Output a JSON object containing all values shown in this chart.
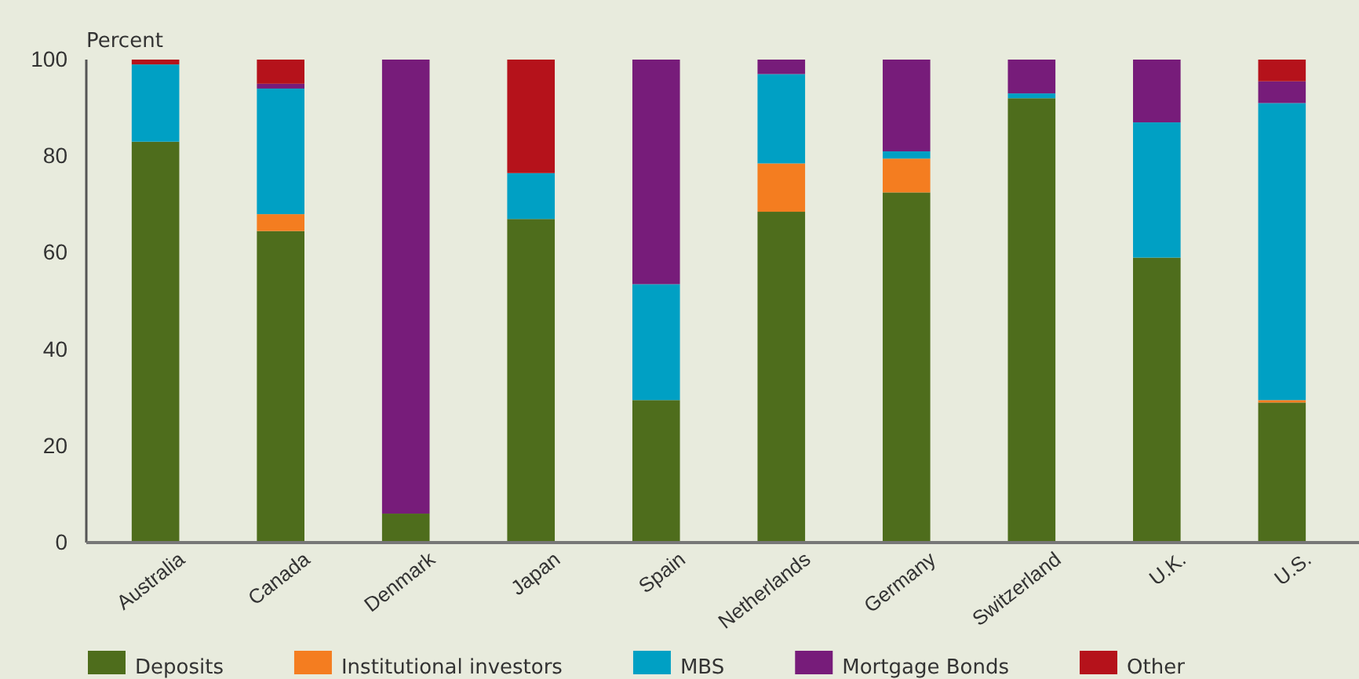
{
  "chart_data": {
    "type": "bar",
    "stacked": true,
    "ylabel": "Percent",
    "categories": [
      "Australia",
      "Canada",
      "Denmark",
      "Japan",
      "Spain",
      "Netherlands",
      "Germany",
      "Switzerland",
      "U.K.",
      "U.S."
    ],
    "series": [
      {
        "name": "Deposits",
        "color": "#4e6d1c",
        "values": [
          83,
          64.5,
          6,
          67,
          29.5,
          68.5,
          72.5,
          92,
          59,
          29
        ]
      },
      {
        "name": "Institutional investors",
        "color": "#f47d20",
        "values": [
          0,
          3.5,
          0,
          0,
          0,
          10,
          7,
          0,
          0,
          0.5
        ]
      },
      {
        "name": "MBS",
        "color": "#00a0c4",
        "values": [
          16,
          26,
          0,
          9.5,
          24,
          18.5,
          1.5,
          1,
          28,
          61.5
        ]
      },
      {
        "name": "Mortgage Bonds",
        "color": "#771c7a",
        "values": [
          0,
          1,
          94,
          0,
          46.5,
          3,
          19,
          7,
          13,
          4.5
        ]
      },
      {
        "name": "Other",
        "color": "#b5121b",
        "values": [
          1,
          5,
          0,
          23.5,
          0,
          0,
          0,
          0,
          0,
          4.5
        ]
      }
    ],
    "ylim": [
      0,
      100
    ],
    "yticks": [
      0,
      20,
      40,
      60,
      80,
      100
    ],
    "grid": false,
    "legend": "bottom"
  }
}
